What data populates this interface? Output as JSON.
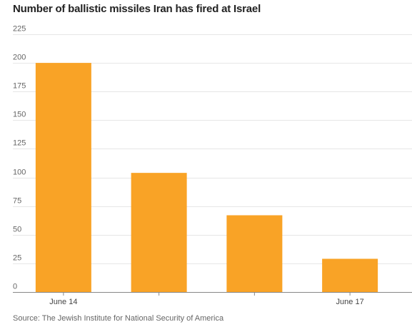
{
  "chart_data": {
    "type": "bar",
    "title": "Number of ballistic missiles Iran has fired at Israel",
    "source": "Source: The Jewish Institute for National Security of America",
    "xlabel": "",
    "ylabel": "",
    "categories": [
      "June 14",
      "",
      "",
      "June 17"
    ],
    "values": [
      200,
      104,
      67,
      29
    ],
    "ylim": [
      0,
      225
    ],
    "yticks": [
      0,
      25,
      50,
      75,
      100,
      125,
      150,
      175,
      200,
      225
    ],
    "grid": true,
    "legend": "none",
    "colors": {
      "bar": "#F9A326",
      "grid": "#E6E6E6",
      "axis": "#888888",
      "tick_text": "#666666"
    }
  }
}
